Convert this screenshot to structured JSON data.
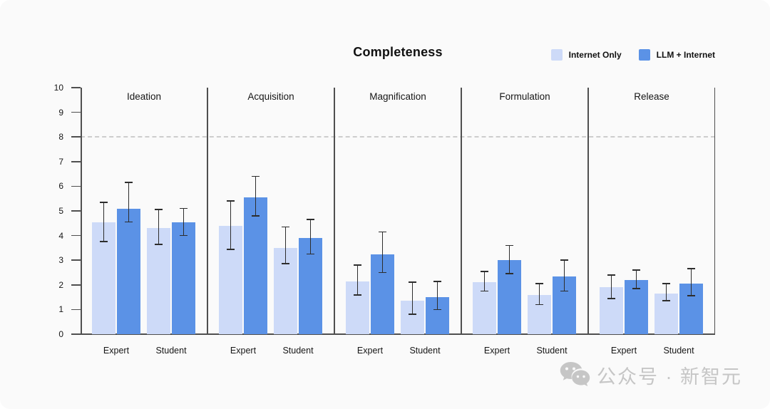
{
  "page": {
    "background": "#fafafa"
  },
  "header": {
    "title": "Completeness"
  },
  "watermark": {
    "icon": "wechat-icon",
    "text": "公众号 · 新智元",
    "color": "#c6c6c6"
  },
  "chart_data": {
    "type": "bar",
    "title": "Completeness",
    "xlabel": "",
    "ylabel": "",
    "ylim": [
      0,
      10
    ],
    "yticks": [
      0,
      1,
      2,
      3,
      4,
      5,
      6,
      7,
      8,
      9,
      10
    ],
    "reference_line_y": 8,
    "grid": false,
    "legend_position": "top-right",
    "group_centers": [
      50,
      127
    ],
    "series": [
      {
        "name": "Internet Only",
        "color": "#CDDAF8"
      },
      {
        "name": "LLM + Internet",
        "color": "#5B92E6"
      }
    ],
    "panels": [
      {
        "label": "Ideation",
        "groups": [
          {
            "label": "Expert",
            "bars": [
              {
                "series": "Internet Only",
                "value": 4.55,
                "err_low": 3.75,
                "err_high": 5.35
              },
              {
                "series": "LLM + Internet",
                "value": 5.1,
                "err_low": 4.55,
                "err_high": 6.15
              }
            ]
          },
          {
            "label": "Student",
            "bars": [
              {
                "series": "Internet Only",
                "value": 4.3,
                "err_low": 3.65,
                "err_high": 5.05
              },
              {
                "series": "LLM + Internet",
                "value": 4.55,
                "err_low": 4.0,
                "err_high": 5.1
              }
            ]
          }
        ]
      },
      {
        "label": "Acquisition",
        "groups": [
          {
            "label": "Expert",
            "bars": [
              {
                "series": "Internet Only",
                "value": 4.4,
                "err_low": 3.45,
                "err_high": 5.4
              },
              {
                "series": "LLM + Internet",
                "value": 5.55,
                "err_low": 4.8,
                "err_high": 6.4
              }
            ]
          },
          {
            "label": "Student",
            "bars": [
              {
                "series": "Internet Only",
                "value": 3.5,
                "err_low": 2.85,
                "err_high": 4.35
              },
              {
                "series": "LLM + Internet",
                "value": 3.9,
                "err_low": 3.25,
                "err_high": 4.65
              }
            ]
          }
        ]
      },
      {
        "label": "Magnification",
        "groups": [
          {
            "label": "Expert",
            "bars": [
              {
                "series": "Internet Only",
                "value": 2.15,
                "err_low": 1.6,
                "err_high": 2.8
              },
              {
                "series": "LLM + Internet",
                "value": 3.25,
                "err_low": 2.5,
                "err_high": 4.15
              }
            ]
          },
          {
            "label": "Student",
            "bars": [
              {
                "series": "Internet Only",
                "value": 1.35,
                "err_low": 0.8,
                "err_high": 2.1
              },
              {
                "series": "LLM + Internet",
                "value": 1.5,
                "err_low": 1.0,
                "err_high": 2.15
              }
            ]
          }
        ]
      },
      {
        "label": "Formulation",
        "groups": [
          {
            "label": "Expert",
            "bars": [
              {
                "series": "Internet Only",
                "value": 2.1,
                "err_low": 1.75,
                "err_high": 2.55
              },
              {
                "series": "LLM + Internet",
                "value": 3.0,
                "err_low": 2.45,
                "err_high": 3.6
              }
            ]
          },
          {
            "label": "Student",
            "bars": [
              {
                "series": "Internet Only",
                "value": 1.6,
                "err_low": 1.2,
                "err_high": 2.05
              },
              {
                "series": "LLM + Internet",
                "value": 2.35,
                "err_low": 1.75,
                "err_high": 3.0
              }
            ]
          }
        ]
      },
      {
        "label": "Release",
        "groups": [
          {
            "label": "Expert",
            "bars": [
              {
                "series": "Internet Only",
                "value": 1.9,
                "err_low": 1.45,
                "err_high": 2.4
              },
              {
                "series": "LLM + Internet",
                "value": 2.2,
                "err_low": 1.85,
                "err_high": 2.6
              }
            ]
          },
          {
            "label": "Student",
            "bars": [
              {
                "series": "Internet Only",
                "value": 1.65,
                "err_low": 1.35,
                "err_high": 2.05
              },
              {
                "series": "LLM + Internet",
                "value": 2.05,
                "err_low": 1.55,
                "err_high": 2.65
              }
            ]
          }
        ]
      }
    ]
  }
}
